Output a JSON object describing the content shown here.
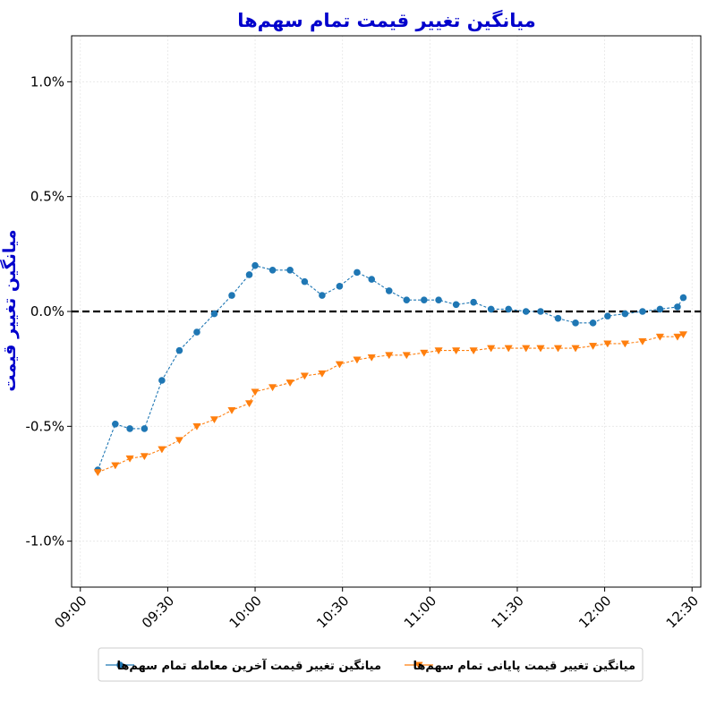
{
  "chart_data": {
    "type": "line",
    "title": "میانگین تغییر قیمت تمام سهم‌ها",
    "ylabel": "میانگین تغییر قیمت",
    "xlabel": "",
    "x_ticks": [
      "09:00",
      "09:30",
      "10:00",
      "10:30",
      "11:00",
      "11:30",
      "12:00",
      "12:30"
    ],
    "y_ticks": [
      "-1.0%",
      "-0.5%",
      "0.0%",
      "0.5%",
      "1.0%"
    ],
    "xlim": [
      "08:57",
      "12:33"
    ],
    "ylim": [
      -1.2,
      1.2
    ],
    "y_unit": "%",
    "reference_line": {
      "y": 0.0,
      "style": "dashed",
      "color": "#000000"
    },
    "grid": true,
    "legend_position": "bottom-center",
    "series": [
      {
        "name": "میانگین تغییر قیمت آخرین معامله تمام سهم‌ها",
        "color": "#1f77b4",
        "marker": "circle",
        "line_style": "dashed",
        "x": [
          "09:06",
          "09:12",
          "09:17",
          "09:22",
          "09:28",
          "09:34",
          "09:40",
          "09:46",
          "09:52",
          "09:58",
          "10:00",
          "10:06",
          "10:12",
          "10:17",
          "10:23",
          "10:29",
          "10:35",
          "10:40",
          "10:46",
          "10:52",
          "10:58",
          "11:03",
          "11:09",
          "11:15",
          "11:21",
          "11:27",
          "11:33",
          "11:38",
          "11:44",
          "11:50",
          "11:56",
          "12:01",
          "12:07",
          "12:13",
          "12:19",
          "12:25",
          "12:27"
        ],
        "values": [
          -0.69,
          -0.49,
          -0.51,
          -0.51,
          -0.3,
          -0.17,
          -0.09,
          -0.01,
          0.07,
          0.16,
          0.2,
          0.18,
          0.18,
          0.13,
          0.07,
          0.11,
          0.17,
          0.14,
          0.09,
          0.05,
          0.05,
          0.05,
          0.03,
          0.04,
          0.01,
          0.01,
          0.0,
          0.0,
          -0.03,
          -0.05,
          -0.05,
          -0.02,
          -0.01,
          0.0,
          0.01,
          0.02,
          0.06
        ]
      },
      {
        "name": "میانگین تغییر قیمت پایانی تمام سهم‌ها",
        "color": "#ff7f0e",
        "marker": "triangle-down",
        "line_style": "dashed",
        "x": [
          "09:06",
          "09:12",
          "09:17",
          "09:22",
          "09:28",
          "09:34",
          "09:40",
          "09:46",
          "09:52",
          "09:58",
          "10:00",
          "10:06",
          "10:12",
          "10:17",
          "10:23",
          "10:29",
          "10:35",
          "10:40",
          "10:46",
          "10:52",
          "10:58",
          "11:03",
          "11:09",
          "11:15",
          "11:21",
          "11:27",
          "11:33",
          "11:38",
          "11:44",
          "11:50",
          "11:56",
          "12:01",
          "12:07",
          "12:13",
          "12:19",
          "12:25",
          "12:27"
        ],
        "values": [
          -0.7,
          -0.67,
          -0.64,
          -0.63,
          -0.6,
          -0.56,
          -0.5,
          -0.47,
          -0.43,
          -0.4,
          -0.35,
          -0.33,
          -0.31,
          -0.28,
          -0.27,
          -0.23,
          -0.21,
          -0.2,
          -0.19,
          -0.19,
          -0.18,
          -0.17,
          -0.17,
          -0.17,
          -0.16,
          -0.16,
          -0.16,
          -0.16,
          -0.16,
          -0.16,
          -0.15,
          -0.14,
          -0.14,
          -0.13,
          -0.11,
          -0.11,
          -0.1
        ]
      }
    ]
  }
}
